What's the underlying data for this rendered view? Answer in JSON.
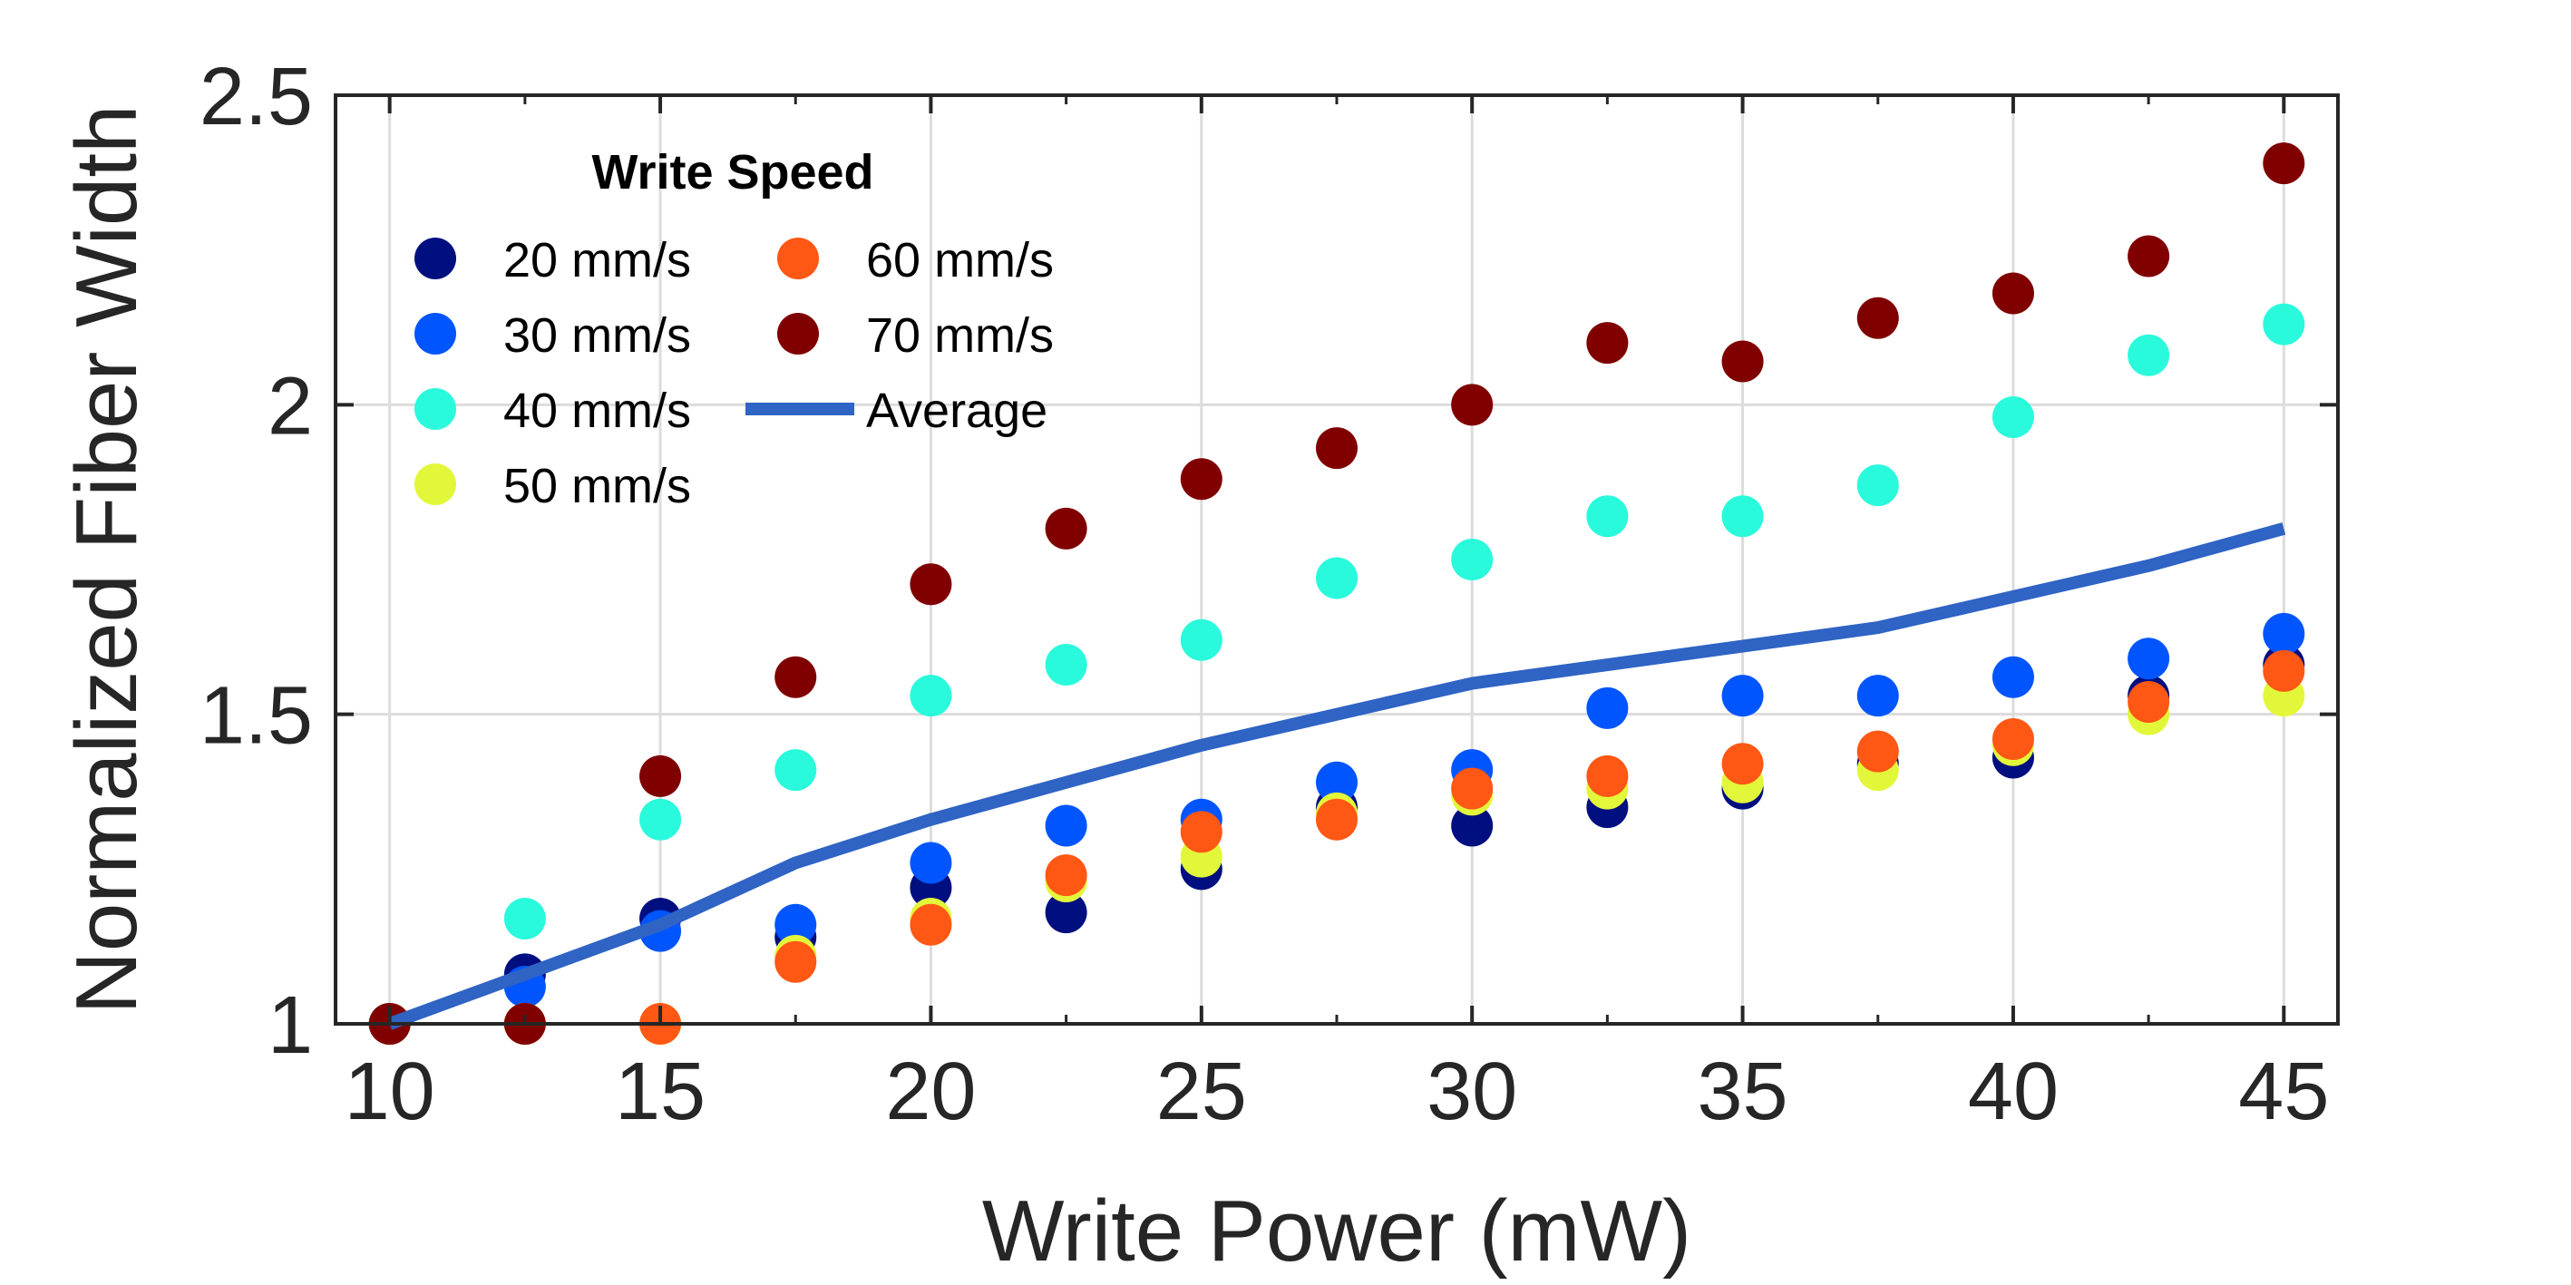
{
  "chart_data": {
    "type": "scatter",
    "title": "",
    "xlabel": "Write Power (mW)",
    "ylabel": "Normalized Fiber Width",
    "xlim": [
      9,
      46
    ],
    "ylim": [
      1,
      2.5
    ],
    "xticks": [
      10,
      15,
      20,
      25,
      30,
      35,
      40,
      45
    ],
    "xtick_labels": [
      "10",
      "15",
      "20",
      "25",
      "30",
      "35",
      "40",
      "45"
    ],
    "yticks": [
      1,
      1.5,
      2,
      2.5
    ],
    "ytick_labels": [
      "1",
      "1.5",
      "2",
      "2.5"
    ],
    "grid": true,
    "legend": {
      "title": "Write Speed",
      "placement": "top-left",
      "columns": 2
    },
    "x": [
      10,
      12.5,
      15,
      17.5,
      20,
      22.5,
      25,
      27.5,
      30,
      32.5,
      35,
      37.5,
      40,
      42.5,
      45
    ],
    "series": [
      {
        "name": "20 mm/s",
        "color": "#000f7f",
        "marker": "circle",
        "values": [
          1.0,
          1.08,
          1.17,
          1.14,
          1.22,
          1.18,
          1.25,
          1.35,
          1.32,
          1.35,
          1.38,
          1.42,
          1.43,
          1.53,
          1.58
        ]
      },
      {
        "name": "30 mm/s",
        "color": "#0055ff",
        "marker": "circle",
        "values": [
          1.0,
          1.06,
          1.15,
          1.16,
          1.26,
          1.32,
          1.33,
          1.39,
          1.41,
          1.51,
          1.53,
          1.53,
          1.56,
          1.59,
          1.63
        ]
      },
      {
        "name": "40 mm/s",
        "color": "#2afadc",
        "marker": "circle",
        "values": [
          1.0,
          1.17,
          1.33,
          1.41,
          1.53,
          1.58,
          1.62,
          1.72,
          1.75,
          1.82,
          1.82,
          1.87,
          1.98,
          2.08,
          2.13
        ]
      },
      {
        "name": "50 mm/s",
        "color": "#e3f73a",
        "marker": "circle",
        "values": [
          1.0,
          1.0,
          1.0,
          1.11,
          1.17,
          1.23,
          1.27,
          1.34,
          1.37,
          1.38,
          1.39,
          1.41,
          1.45,
          1.5,
          1.53
        ]
      },
      {
        "name": "60 mm/s",
        "color": "#ff5714",
        "marker": "circle",
        "values": [
          1.0,
          1.0,
          1.0,
          1.1,
          1.16,
          1.24,
          1.31,
          1.33,
          1.38,
          1.4,
          1.42,
          1.44,
          1.46,
          1.52,
          1.57
        ]
      },
      {
        "name": "70 mm/s",
        "color": "#800000",
        "marker": "circle",
        "values": [
          1.0,
          1.0,
          1.4,
          1.56,
          1.71,
          1.8,
          1.88,
          1.93,
          2.0,
          2.1,
          2.07,
          2.14,
          2.18,
          2.24,
          2.39
        ]
      },
      {
        "name": "Average",
        "color": "#2f63c4",
        "marker": "line",
        "values": [
          1.0,
          1.08,
          1.16,
          1.26,
          1.33,
          1.39,
          1.45,
          1.5,
          1.55,
          1.58,
          1.61,
          1.64,
          1.69,
          1.74,
          1.8
        ]
      }
    ]
  }
}
